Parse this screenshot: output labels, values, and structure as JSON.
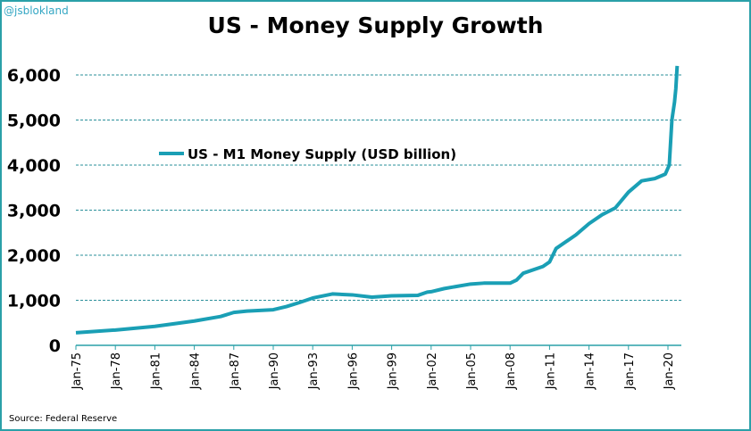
{
  "handle": "@jsblokland",
  "source": "Source: Federal Reserve",
  "chart_data": {
    "type": "line",
    "title": "US - Money Supply Growth",
    "xlabel": "",
    "ylabel": "",
    "ylim": [
      0,
      6000
    ],
    "yticks": [
      0,
      1000,
      2000,
      3000,
      4000,
      5000,
      6000
    ],
    "ytick_labels": [
      "0",
      "1,000",
      "2,000",
      "3,000",
      "4,000",
      "5,000",
      "6,000"
    ],
    "xlim": [
      1975,
      2021.3
    ],
    "xticks": [
      1975,
      1978,
      1981,
      1984,
      1987,
      1990,
      1993,
      1996,
      1999,
      2002,
      2005,
      2008,
      2011,
      2014,
      2017,
      2020
    ],
    "xtick_labels": [
      "Jan-75",
      "Jan-78",
      "Jan-81",
      "Jan-84",
      "Jan-87",
      "Jan-90",
      "Jan-93",
      "Jan-96",
      "Jan-99",
      "Jan-02",
      "Jan-05",
      "Jan-08",
      "Jan-11",
      "Jan-14",
      "Jan-17",
      "Jan-20"
    ],
    "grid": true,
    "legend": "upper-left",
    "color": "#1a9fb5",
    "series": [
      {
        "name": "US - M1 Money Supply (USD billion)",
        "x": [
          1975,
          1978,
          1981,
          1984,
          1986,
          1987,
          1988,
          1990,
          1991,
          1992,
          1993,
          1994.5,
          1996,
          1997.5,
          1999,
          2001,
          2001.7,
          2002,
          2003,
          2005,
          2006,
          2008,
          2008.5,
          2009,
          2010.5,
          2011,
          2011.5,
          2013,
          2014,
          2015,
          2016,
          2017,
          2018,
          2019,
          2019.8,
          2020.1,
          2020.3,
          2020.5,
          2020.6,
          2020.7
        ],
        "y": [
          280,
          340,
          420,
          540,
          640,
          730,
          760,
          790,
          860,
          950,
          1050,
          1140,
          1120,
          1070,
          1100,
          1110,
          1180,
          1190,
          1260,
          1360,
          1380,
          1380,
          1450,
          1600,
          1750,
          1850,
          2150,
          2450,
          2700,
          2900,
          3050,
          3400,
          3650,
          3700,
          3800,
          4000,
          5000,
          5400,
          5700,
          6200
        ]
      }
    ]
  }
}
